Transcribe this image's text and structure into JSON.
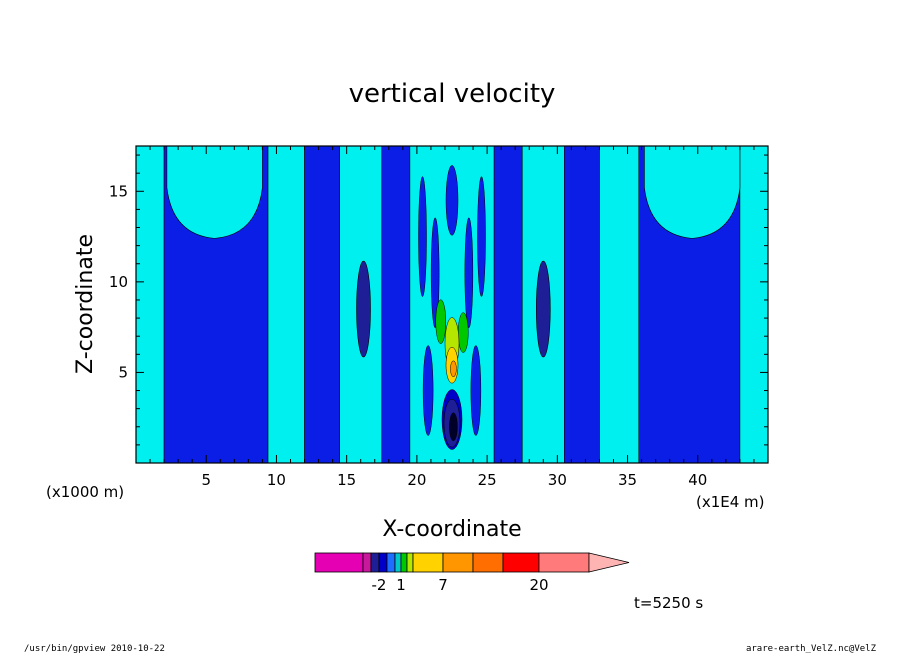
{
  "chart_data": {
    "type": "heatmap",
    "title": "vertical velocity",
    "xlabel": "X-coordinate",
    "ylabel": "Z-coordinate",
    "x_unit_left": "(x1000 m)",
    "x_unit_right": "(x1E4 m)",
    "xlim": [
      0,
      45
    ],
    "ylim": [
      0,
      17.5
    ],
    "x_ticks": [
      "5",
      "10",
      "15",
      "20",
      "25",
      "30",
      "35",
      "40"
    ],
    "x_tick_values": [
      5,
      10,
      15,
      20,
      25,
      30,
      35,
      40
    ],
    "y_ticks": [
      "5",
      "10",
      "15"
    ],
    "y_tick_values": [
      5,
      10,
      15
    ],
    "grid": false,
    "regions": [
      {
        "kind": "cyan-band",
        "x_range": [
          0,
          2.0
        ]
      },
      {
        "kind": "blue-band",
        "x_range": [
          2.0,
          9.4
        ]
      },
      {
        "kind": "cyan-band",
        "x_range": [
          9.4,
          12.0
        ]
      },
      {
        "kind": "blue-band",
        "x_range": [
          12.0,
          14.5
        ]
      },
      {
        "kind": "cyan-band",
        "x_range": [
          14.5,
          17.5
        ]
      },
      {
        "kind": "blue-band",
        "x_range": [
          17.5,
          19.5
        ]
      },
      {
        "kind": "cyan-band",
        "x_range": [
          19.5,
          25.5
        ]
      },
      {
        "kind": "blue-band",
        "x_range": [
          25.5,
          27.5
        ]
      },
      {
        "kind": "cyan-band",
        "x_range": [
          27.5,
          30.5
        ]
      },
      {
        "kind": "blue-band",
        "x_range": [
          30.5,
          33.0
        ]
      },
      {
        "kind": "cyan-band",
        "x_range": [
          33.0,
          35.8
        ]
      },
      {
        "kind": "blue-band",
        "x_range": [
          35.8,
          43.0
        ]
      },
      {
        "kind": "cyan-band",
        "x_range": [
          43.0,
          45.0
        ]
      }
    ],
    "colorbar": {
      "colors": [
        "#e600b4",
        "#c8189c",
        "#1e1e96",
        "#0000c8",
        "#1e6eff",
        "#00c8c8",
        "#00c800",
        "#b4e600",
        "#ffd200",
        "#ff9600",
        "#ff6e00",
        "#ff0000",
        "#ff7a7a",
        "#ffb4b4"
      ],
      "labels": [
        "-2",
        "1",
        "7",
        "20"
      ]
    },
    "time_label": "t=5250 s"
  },
  "footer": {
    "left": "/usr/bin/gpview   2010-10-22",
    "right": "arare-earth_VelZ.nc@VelZ"
  }
}
